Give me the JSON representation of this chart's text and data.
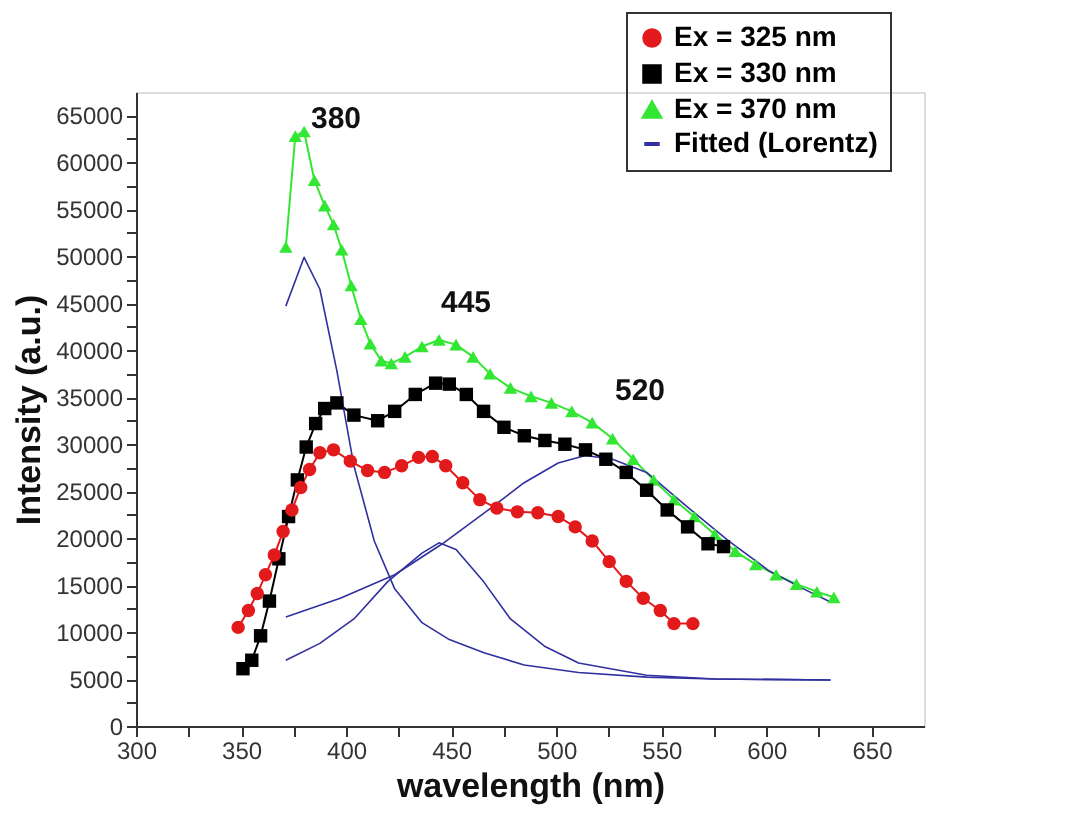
{
  "chart_data": {
    "type": "line",
    "xlabel": "wavelength (nm)",
    "ylabel": "Intensity (a.u.)",
    "xlim": [
      300,
      675
    ],
    "ylim": [
      0,
      67500
    ],
    "xticks": [
      300,
      {
        "value": 325,
        "label": null
      },
      350,
      {
        "value": 375,
        "label": null
      },
      400,
      {
        "value": 425,
        "label": null
      },
      450,
      {
        "value": 475,
        "label": null
      },
      500,
      {
        "value": 525,
        "label": null
      },
      550,
      {
        "value": 575,
        "label": null
      },
      600,
      {
        "value": 625,
        "label": null
      },
      650
    ],
    "yticks": [
      0,
      {
        "value": 2500,
        "label": null
      },
      5000,
      {
        "value": 7500,
        "label": null
      },
      10000,
      {
        "value": 12500,
        "label": null
      },
      15000,
      {
        "value": 17500,
        "label": null
      },
      20000,
      {
        "value": 22500,
        "label": null
      },
      25000,
      {
        "value": 27500,
        "label": null
      },
      30000,
      {
        "value": 32500,
        "label": null
      },
      35000,
      {
        "value": 37500,
        "label": null
      },
      40000,
      {
        "value": 42500,
        "label": null
      },
      45000,
      {
        "value": 47500,
        "label": null
      },
      50000,
      {
        "value": 52500,
        "label": null
      },
      55000,
      {
        "value": 57500,
        "label": null
      },
      60000,
      {
        "value": 62500,
        "label": null
      },
      65000
    ],
    "grid": false,
    "legend": "top right",
    "line_style": "solid",
    "series": [
      {
        "name": "Ex = 325 nm",
        "color": "#e31a1c",
        "marker": "circle",
        "x": [
          348.6,
          353.5,
          357.7,
          361.6,
          365.8,
          370,
          374.2,
          378.4,
          382.6,
          387.5,
          394,
          402,
          410.2,
          418.3,
          426.4,
          434.5,
          441,
          447.4,
          455.5,
          463.6,
          471.7,
          481.5,
          491.2,
          500.9,
          509,
          517.1,
          525.2,
          533.3,
          541.4,
          549.5,
          556,
          565
        ],
        "values": [
          10500,
          12300,
          14100,
          16100,
          18200,
          20700,
          23000,
          25400,
          27300,
          29100,
          29400,
          28200,
          27200,
          27000,
          27700,
          28600,
          28700,
          27700,
          25900,
          24100,
          23200,
          22800,
          22700,
          22300,
          21200,
          19700,
          17500,
          15400,
          13600,
          12300,
          10900,
          10900
        ]
      },
      {
        "name": "Ex = 330 nm",
        "color": "#000000",
        "marker": "square",
        "x": [
          350.9,
          355.1,
          359.3,
          363.5,
          368,
          372.6,
          376.8,
          381,
          385.5,
          389.8,
          395.6,
          403.7,
          415,
          423.1,
          432.9,
          442.6,
          449.1,
          457.2,
          465.4,
          475.1,
          484.8,
          494.6,
          504.1,
          513.9,
          523.6,
          533.3,
          543,
          552.8,
          562.5,
          572.2,
          579.6
        ],
        "values": [
          6100,
          7000,
          9600,
          13300,
          17800,
          22300,
          26200,
          29700,
          32200,
          33800,
          34400,
          33100,
          32500,
          33500,
          35300,
          36500,
          36400,
          35300,
          33500,
          31800,
          30900,
          30400,
          30000,
          29400,
          28400,
          27000,
          25100,
          23000,
          21200,
          19400,
          19100
        ]
      },
      {
        "name": "Ex = 370 nm",
        "color": "#33e633",
        "marker": "triangle",
        "x": [
          371.3,
          375.8,
          380,
          384.9,
          389.8,
          394,
          397.9,
          402.4,
          407,
          411.5,
          416.7,
          421.5,
          428,
          436.1,
          444.2,
          452.3,
          460.4,
          468.5,
          478.2,
          488,
          497.7,
          507.4,
          517.1,
          526.8,
          536.6,
          546.3,
          556,
          565.7,
          575.4,
          585.2,
          594.9,
          604.6,
          614.3,
          624,
          632.1
        ],
        "values": [
          51000,
          62800,
          63300,
          58100,
          55400,
          53400,
          50700,
          46900,
          43300,
          40700,
          38900,
          38600,
          39300,
          40400,
          41100,
          40600,
          39300,
          37500,
          36000,
          35100,
          34400,
          33500,
          32300,
          30600,
          28400,
          26200,
          24100,
          22300,
          20400,
          18600,
          17200,
          16100,
          15100,
          14300,
          13700
        ]
      },
      {
        "name": "Fitted (Lorentz)",
        "color": "#3030a0",
        "marker": "none",
        "x": [
          371.3,
          380,
          387.5,
          395.6,
          403.7,
          413.4,
          423.1,
          436.1,
          449.1,
          465.6,
          484.7,
          510.6,
          543,
          575.4,
          630.5
        ],
        "values": [
          44700,
          49900,
          46500,
          37800,
          27700,
          19700,
          14600,
          11000,
          9200,
          7800,
          6500,
          5700,
          5200,
          5000,
          4900
        ]
      },
      {
        "color": "#3030a0",
        "marker": "none",
        "x": [
          371.3,
          387.5,
          403.7,
          419.9,
          436.1,
          444.2,
          452.3,
          465.3,
          478.2,
          494.4,
          510.6,
          543,
          575.4,
          630.5
        ],
        "values": [
          7000,
          8800,
          11400,
          15400,
          18400,
          19500,
          18800,
          15400,
          11400,
          8500,
          6700,
          5400,
          5000,
          4900
        ]
      },
      {
        "color": "#3030a0",
        "marker": "none",
        "x": [
          371.3,
          397.2,
          423.1,
          445.8,
          465.3,
          484.7,
          500.9,
          513.9,
          526.8,
          543,
          562.5,
          582,
          601.4,
          617.6,
          630.5
        ],
        "values": [
          11600,
          13600,
          16100,
          19400,
          22600,
          25900,
          28000,
          28800,
          28400,
          27000,
          23300,
          19700,
          16500,
          14600,
          13200
        ]
      }
    ],
    "annotations": [
      "380",
      "445",
      "520"
    ]
  }
}
